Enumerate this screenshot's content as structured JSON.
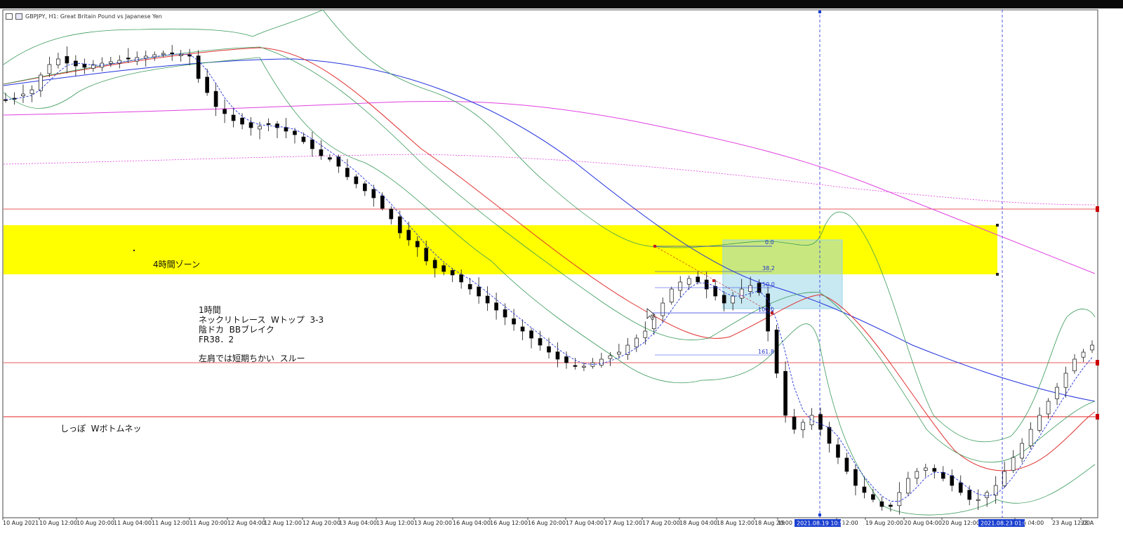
{
  "window": {
    "title": "GBPJPY, H1:  Great Britain Pound vs Japanese Yen"
  },
  "annotations": {
    "zone_label": "4時間ゾーン",
    "note_lines": [
      "1時間",
      "ネックリトレース  Wトップ  3-3",
      "陰ドカ  BBブレイク",
      "FR38．2",
      "",
      "左肩では短期ちかい  スルー"
    ],
    "bottom_note": "しっぽ  Wボトムネッ"
  },
  "fibonacci": {
    "levels": [
      "0.0",
      "38.2",
      "50.0",
      "100.0",
      "161.8"
    ]
  },
  "cursor": {
    "time_label_1": "2021.08.19 10:52",
    "time_label_2": "2021.08.23 01:00"
  },
  "colors": {
    "zone": "#ffff00",
    "ma_fast": "#e03030",
    "ma_mid": "#2233dd",
    "ma_slow": "#e040e0",
    "bollinger": "#3a9a5a",
    "support_line": "#e02020"
  },
  "chart_data": {
    "type": "candlestick",
    "symbol": "GBPJPY",
    "timeframe": "H1",
    "x_ticks": [
      "10 Aug 2021",
      "10 Aug 12:00",
      "10 Aug 20:00",
      "11 Aug 04:00",
      "11 Aug 12:00",
      "11 Aug 20:00",
      "12 Aug 04:00",
      "12 Aug 12:00",
      "12 Aug 20:00",
      "13 Aug 04:00",
      "13 Aug 12:00",
      "13 Aug 20:00",
      "16 Aug 04:00",
      "16 Aug 12:00",
      "16 Aug 20:00",
      "17 Aug 04:00",
      "17 Aug 12:00",
      "17 Aug 20:00",
      "18 Aug 04:00",
      "18 Aug 12:00",
      "18 Aug 20:00",
      "19",
      "g 12:00",
      "19 Aug 20:00",
      "20 Aug 04:00",
      "20 Aug 12:00",
      "Aug 04:00",
      "23 Aug 12:00",
      "23 A"
    ],
    "x_tick_pos": [
      24,
      76,
      129,
      182,
      236,
      290,
      344,
      396,
      451,
      503,
      556,
      610,
      665,
      718,
      772,
      826,
      881,
      935,
      988,
      1041,
      1095,
      1128,
      1212,
      1253,
      1308,
      1362,
      1466,
      1519,
      1560
    ],
    "close_path": [
      130,
      128,
      122,
      116,
      95,
      80,
      72,
      78,
      82,
      84,
      80,
      78,
      76,
      74,
      72,
      70,
      68,
      66,
      64,
      64,
      66,
      68,
      100,
      120,
      140,
      150,
      160,
      165,
      170,
      168,
      165,
      170,
      175,
      180,
      190,
      200,
      210,
      215,
      225,
      240,
      250,
      260,
      270,
      285,
      300,
      320,
      330,
      340,
      360,
      370,
      375,
      380,
      390,
      400,
      410,
      420,
      430,
      440,
      450,
      460,
      470,
      480,
      490,
      500,
      505,
      510,
      510,
      505,
      500,
      495,
      490,
      480,
      470,
      460,
      440,
      420,
      400,
      390,
      385,
      390,
      400,
      410,
      420,
      410,
      400,
      395,
      405,
      460,
      520,
      580,
      600,
      590,
      580,
      600,
      620,
      640,
      660,
      680,
      690,
      700,
      710,
      710,
      690,
      670,
      660,
      655,
      660,
      670,
      680,
      690,
      700,
      700,
      690,
      680,
      660,
      640,
      620,
      600,
      580,
      560,
      540,
      520,
      500,
      490,
      480
    ]
  }
}
